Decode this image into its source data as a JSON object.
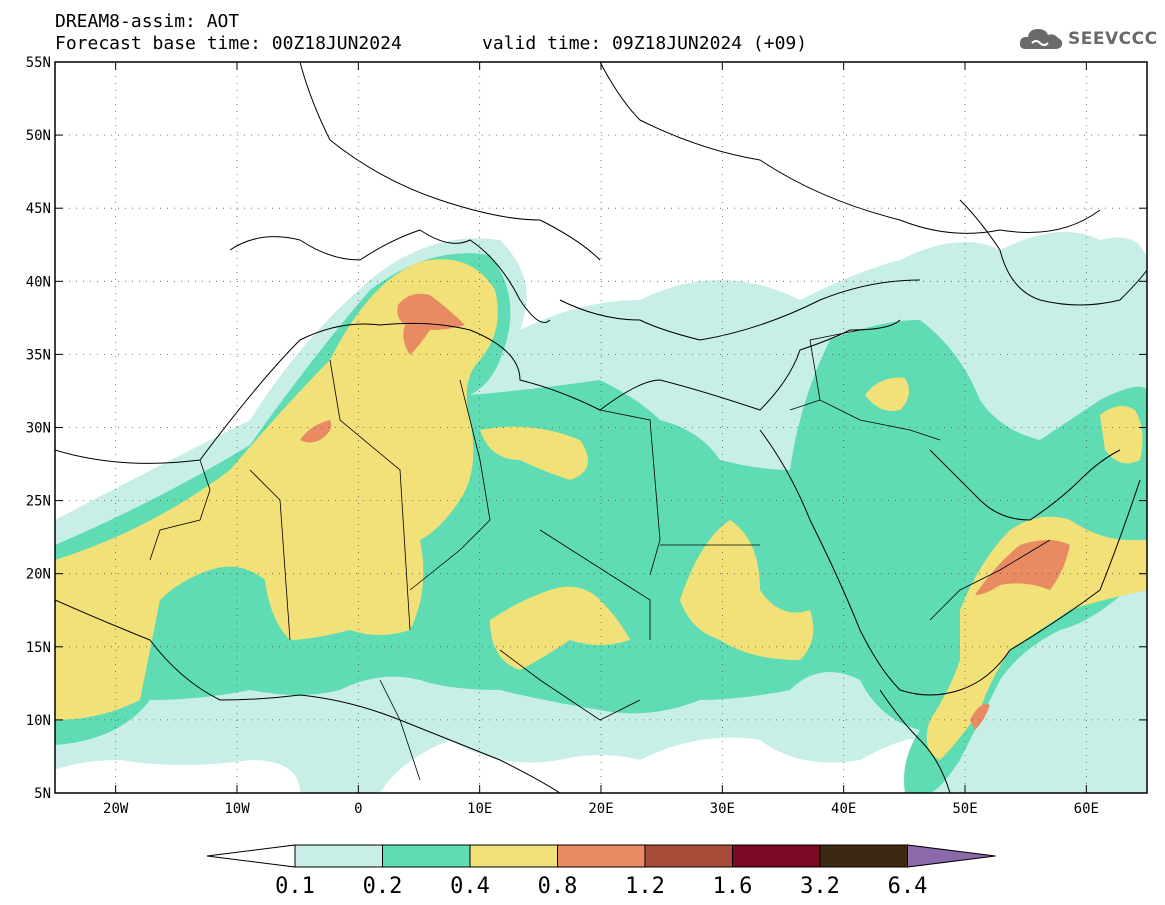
{
  "title": {
    "line1": "DREAM8-assim: AOT",
    "line2": "Forecast base time: 00Z18JUN2024",
    "valid": "valid time: 09Z18JUN2024 (+09)"
  },
  "logo": {
    "text": "SEEVCCC",
    "icon": "cloud-icon",
    "color": "#6a6a6a"
  },
  "map": {
    "lon_range": [
      -25,
      65
    ],
    "lat_range": [
      5,
      55
    ],
    "lat_ticks": [
      {
        "value": 55,
        "label": "55N"
      },
      {
        "value": 50,
        "label": "50N"
      },
      {
        "value": 45,
        "label": "45N"
      },
      {
        "value": 40,
        "label": "40N"
      },
      {
        "value": 35,
        "label": "35N"
      },
      {
        "value": 30,
        "label": "30N"
      },
      {
        "value": 25,
        "label": "25N"
      },
      {
        "value": 20,
        "label": "20N"
      },
      {
        "value": 15,
        "label": "15N"
      },
      {
        "value": 10,
        "label": "10N"
      },
      {
        "value": 5,
        "label": "5N"
      }
    ],
    "lon_ticks": [
      {
        "value": -20,
        "label": "20W"
      },
      {
        "value": -10,
        "label": "10W"
      },
      {
        "value": 0,
        "label": "0"
      },
      {
        "value": 10,
        "label": "10E"
      },
      {
        "value": 20,
        "label": "20E"
      },
      {
        "value": 30,
        "label": "30E"
      },
      {
        "value": 40,
        "label": "40E"
      },
      {
        "value": 50,
        "label": "50E"
      },
      {
        "value": 60,
        "label": "60E"
      }
    ],
    "grid": "dotted",
    "shading_levels": [
      {
        "range": "0.1-0.2",
        "color": "#c7efe7"
      },
      {
        "range": "0.2-0.4",
        "color": "#5fdcb3"
      },
      {
        "range": "0.4-0.8",
        "color": "#f1e178"
      },
      {
        "range": "0.8-1.2",
        "color": "#e88b63"
      },
      {
        "range": "1.2-1.6",
        "color": "#a84c3a"
      }
    ]
  },
  "colorbar": {
    "colors": [
      "#c7efe7",
      "#5fdcb3",
      "#f1e178",
      "#e88b63",
      "#a84c3a",
      "#7a0a26",
      "#3c2812",
      "#8a6aa8"
    ],
    "left_arrow_color": "#ffffff",
    "labels": [
      "0.1",
      "0.2",
      "0.4",
      "0.8",
      "1.2",
      "1.6",
      "3.2",
      "6.4"
    ]
  }
}
